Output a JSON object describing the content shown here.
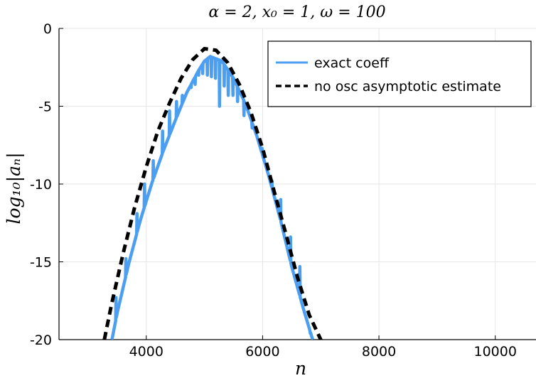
{
  "chart_data": {
    "type": "line",
    "title": "α = 2, x₀ = 1, ω = 100",
    "xlabel": "n",
    "ylabel": "log₁₀|aₙ|",
    "xlim": [
      2500,
      10700
    ],
    "ylim": [
      -20,
      0
    ],
    "xticks": [
      4000,
      6000,
      8000,
      10000
    ],
    "yticks": [
      0,
      -5,
      -10,
      -15,
      -20
    ],
    "xtick_labels": [
      "4000",
      "6000",
      "8000",
      "10000"
    ],
    "ytick_labels": [
      "0",
      "-5",
      "-10",
      "-15",
      "-20"
    ],
    "grid": true,
    "legend_position": "top-right",
    "series": [
      {
        "name": "exact coeff",
        "color": "#4c9ff0",
        "style": "solid",
        "envelope": {
          "x": [
            3410,
            3500,
            3700,
            3900,
            4100,
            4300,
            4500,
            4700,
            4900,
            5000,
            5100,
            5300,
            5500,
            5700,
            5900,
            6100,
            6300,
            6500,
            6700,
            6860
          ],
          "y": [
            -20,
            -18.3,
            -15.1,
            -12.3,
            -9.9,
            -7.8,
            -5.9,
            -4.1,
            -2.7,
            -2.1,
            -1.8,
            -2.1,
            -3.2,
            -4.8,
            -6.9,
            -9.4,
            -12.2,
            -15.3,
            -18.0,
            -20
          ]
        },
        "dips": {
          "x": [
            3480,
            3650,
            3840,
            3970,
            4120,
            4280,
            4400,
            4520,
            4620,
            4700,
            4770,
            4840,
            4900,
            4970,
            5050,
            5120,
            5190,
            5260,
            5340,
            5410,
            5490,
            5570,
            5680,
            5820,
            5990,
            6160,
            6310,
            6480,
            6640,
            6820
          ],
          "y": [
            -17.3,
            -14.8,
            -11.9,
            -10.0,
            -8.5,
            -6.6,
            -5.3,
            -4.7,
            -4.3,
            -4.1,
            -3.8,
            -3.6,
            -3.0,
            -2.9,
            -3.0,
            -3.1,
            -3.2,
            -5.0,
            -3.7,
            -4.3,
            -4.3,
            -4.7,
            -5.6,
            -6.4,
            -7.7,
            -9.8,
            -11.0,
            -13.4,
            -15.3,
            -19.6
          ]
        }
      },
      {
        "name": "no osc asymptotic estimate",
        "color": "#000000",
        "style": "dashed",
        "x": [
          3280,
          3400,
          3600,
          3800,
          4000,
          4200,
          4400,
          4600,
          4800,
          5000,
          5200,
          5400,
          5600,
          5800,
          6000,
          6200,
          6400,
          6600,
          6800,
          7000,
          7050
        ],
        "y": [
          -20,
          -17.8,
          -14.5,
          -11.5,
          -8.9,
          -6.6,
          -4.8,
          -3.2,
          -2.0,
          -1.3,
          -1.4,
          -2.2,
          -3.6,
          -5.4,
          -7.7,
          -10.5,
          -13.2,
          -16.0,
          -18.4,
          -20,
          -20.5
        ]
      }
    ]
  }
}
